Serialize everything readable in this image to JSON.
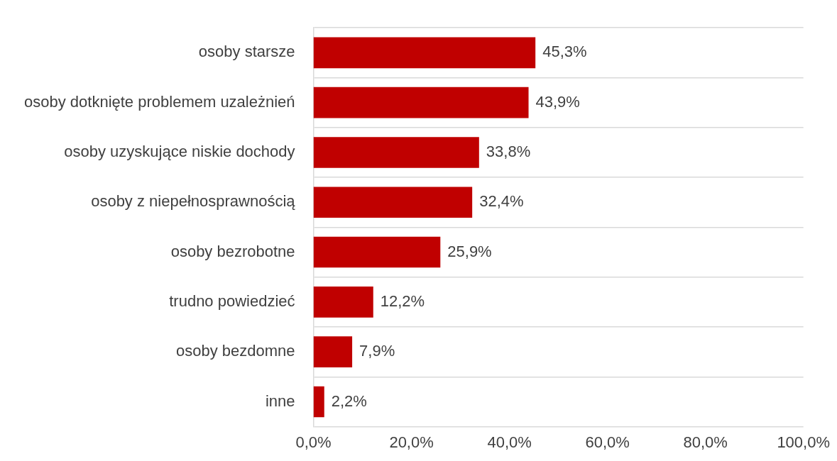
{
  "chart_data": {
    "type": "bar",
    "orientation": "horizontal",
    "categories": [
      "osoby starsze",
      "osoby dotknięte problemem uzależnień",
      "osoby uzyskujące niskie dochody",
      "osoby z niepełnosprawnością",
      "osoby bezrobotne",
      "trudno powiedzieć",
      "osoby bezdomne",
      "inne"
    ],
    "values": [
      45.3,
      43.9,
      33.8,
      32.4,
      25.9,
      12.2,
      7.9,
      2.2
    ],
    "value_labels": [
      "45,3%",
      "43,9%",
      "33,8%",
      "32,4%",
      "25,9%",
      "12,2%",
      "7,9%",
      "2,2%"
    ],
    "color": "#c00000",
    "xlim": [
      0,
      100
    ],
    "xticks": [
      {
        "value": 0,
        "label": "0,0%"
      },
      {
        "value": 20,
        "label": "20,0%"
      },
      {
        "value": 40,
        "label": "40,0%"
      },
      {
        "value": 60,
        "label": "60,0%"
      },
      {
        "value": 80,
        "label": "80,0%"
      },
      {
        "value": 100,
        "label": "100,0%"
      }
    ],
    "grid": "y",
    "legend": false
  }
}
